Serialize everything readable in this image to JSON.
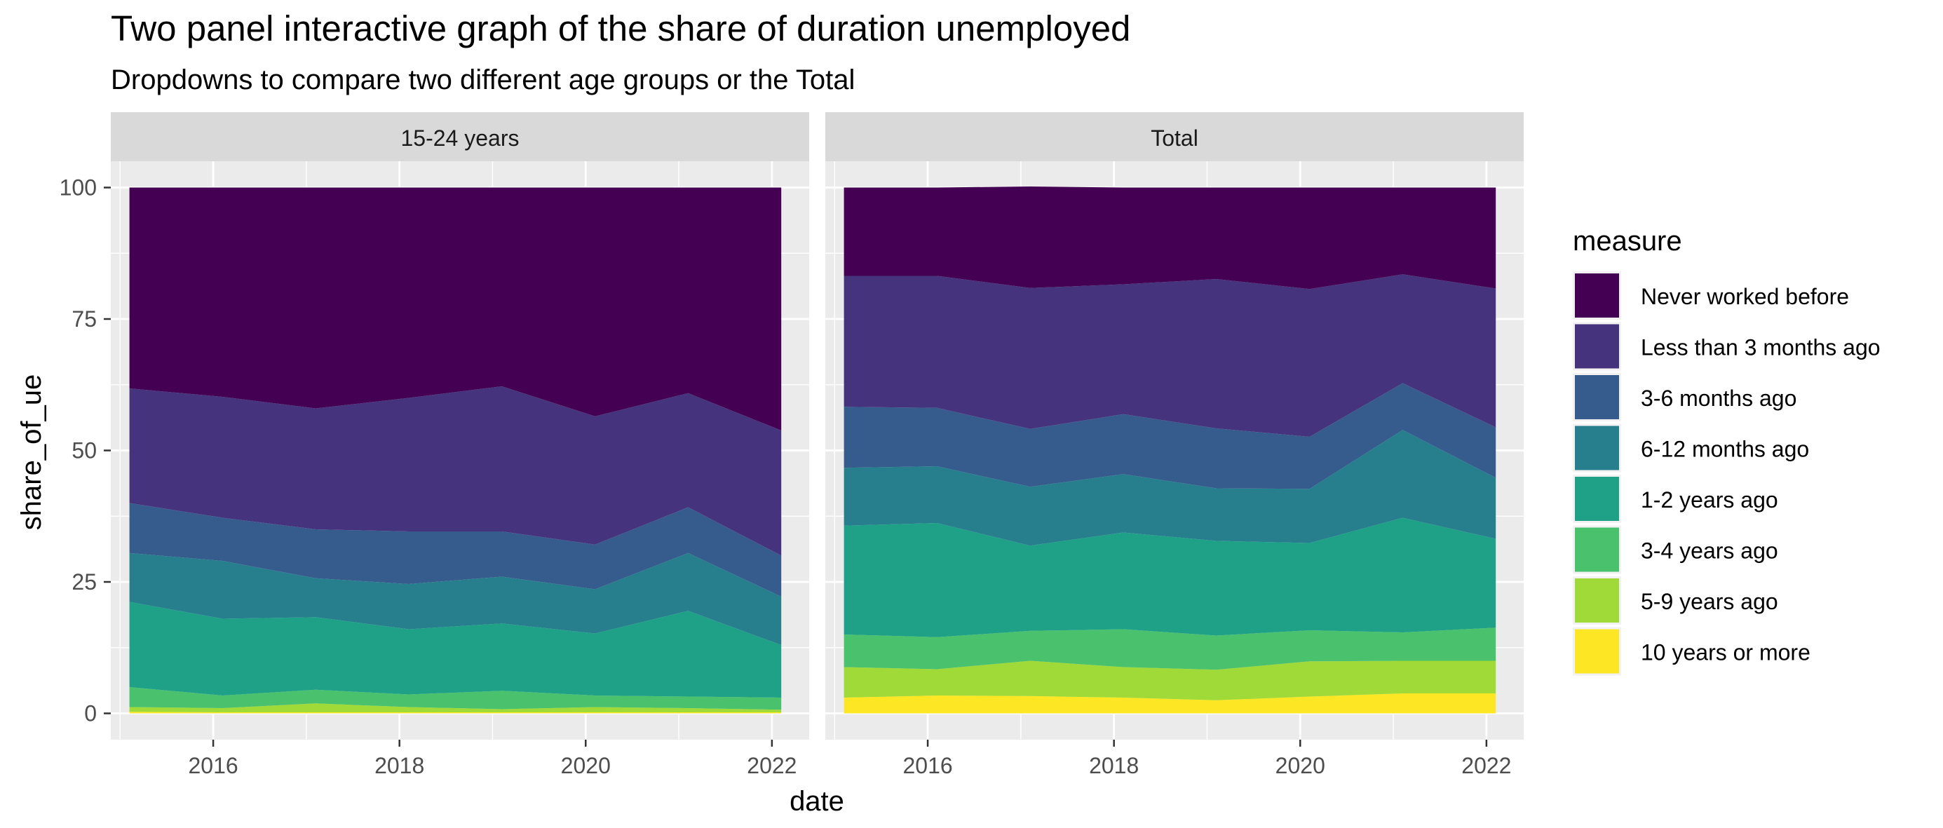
{
  "chart_data": {
    "type": "area",
    "title": "Two panel interactive graph of the share of duration unemployed",
    "subtitle": "Dropdowns to compare two different age groups or the Total",
    "xlabel": "date",
    "ylabel": "share_of_ue",
    "x_ticks": [
      2016,
      2018,
      2020,
      2022
    ],
    "y_ticks": [
      0,
      25,
      50,
      75,
      100
    ],
    "xlim": [
      2014.9,
      2022.4
    ],
    "ylim": [
      -5,
      105
    ],
    "x": [
      2015.1,
      2016.1,
      2017.1,
      2018.1,
      2019.1,
      2020.1,
      2021.1,
      2022.1
    ],
    "stacked": true,
    "grid": true,
    "legend": {
      "title": "measure",
      "position": "right",
      "entries": [
        "Never worked before",
        "Less than 3 months ago",
        "3-6 months ago",
        "6-12 months ago",
        "1-2 years ago",
        "3-4 years ago",
        "5-9 years ago",
        "10 years or more"
      ]
    },
    "colors": {
      "Never worked before": "#440154",
      "Less than 3 months ago": "#46337e",
      "3-6 months ago": "#365c8d",
      "6-12 months ago": "#277f8e",
      "1-2 years ago": "#1fa187",
      "3-4 years ago": "#4ac16d",
      "5-9 years ago": "#a0da39",
      "10 years or more": "#fde725"
    },
    "panels": [
      {
        "label": "15-24 years",
        "series": [
          {
            "name": "10 years or more",
            "values": [
              0.3,
              0.2,
              0.2,
              0.2,
              0.2,
              0.2,
              0.2,
              0.2
            ]
          },
          {
            "name": "5-9 years ago",
            "values": [
              0.9,
              0.8,
              1.7,
              1.0,
              0.6,
              1.0,
              0.8,
              0.5
            ]
          },
          {
            "name": "3-4 years ago",
            "values": [
              3.8,
              2.4,
              2.6,
              2.4,
              3.5,
              2.2,
              2.2,
              2.3
            ]
          },
          {
            "name": "1-2 years ago",
            "values": [
              16.2,
              14.6,
              13.8,
              12.4,
              12.8,
              11.8,
              16.3,
              10.0
            ]
          },
          {
            "name": "6-12 months ago",
            "values": [
              9.3,
              11.0,
              7.4,
              8.6,
              8.9,
              8.4,
              11.0,
              9.2
            ]
          },
          {
            "name": "3-6 months ago",
            "values": [
              9.5,
              8.2,
              9.3,
              10.0,
              8.6,
              8.5,
              8.7,
              7.8
            ]
          },
          {
            "name": "Less than 3 months ago",
            "values": [
              21.8,
              23.0,
              23.0,
              25.4,
              27.6,
              24.4,
              21.7,
              23.8
            ]
          },
          {
            "name": "Never worked before",
            "values": [
              38.2,
              39.8,
              42.0,
              40.0,
              37.8,
              43.5,
              39.1,
              46.2
            ]
          }
        ]
      },
      {
        "label": "Total",
        "series": [
          {
            "name": "10 years or more",
            "values": [
              3.0,
              3.4,
              3.3,
              3.0,
              2.5,
              3.2,
              3.8,
              3.8
            ]
          },
          {
            "name": "5-9 years ago",
            "values": [
              5.8,
              5.0,
              6.7,
              5.8,
              5.8,
              6.7,
              6.2,
              6.2
            ]
          },
          {
            "name": "3-4 years ago",
            "values": [
              6.2,
              6.1,
              5.7,
              7.2,
              6.5,
              5.9,
              5.4,
              6.3
            ]
          },
          {
            "name": "1-2 years ago",
            "values": [
              20.7,
              21.7,
              16.2,
              18.4,
              18.0,
              16.6,
              21.8,
              16.9
            ]
          },
          {
            "name": "6-12 months ago",
            "values": [
              11.0,
              10.8,
              11.2,
              11.1,
              10.0,
              10.3,
              16.7,
              11.6
            ]
          },
          {
            "name": "3-6 months ago",
            "values": [
              11.6,
              11.1,
              11.0,
              11.4,
              11.4,
              9.9,
              8.9,
              9.6
            ]
          },
          {
            "name": "Less than 3 months ago",
            "values": [
              24.9,
              25.1,
              26.8,
              24.7,
              28.4,
              28.1,
              20.7,
              26.4
            ]
          },
          {
            "name": "Never worked before",
            "values": [
              16.8,
              16.8,
              19.3,
              18.4,
              17.4,
              19.3,
              16.5,
              19.2
            ]
          }
        ]
      }
    ]
  }
}
